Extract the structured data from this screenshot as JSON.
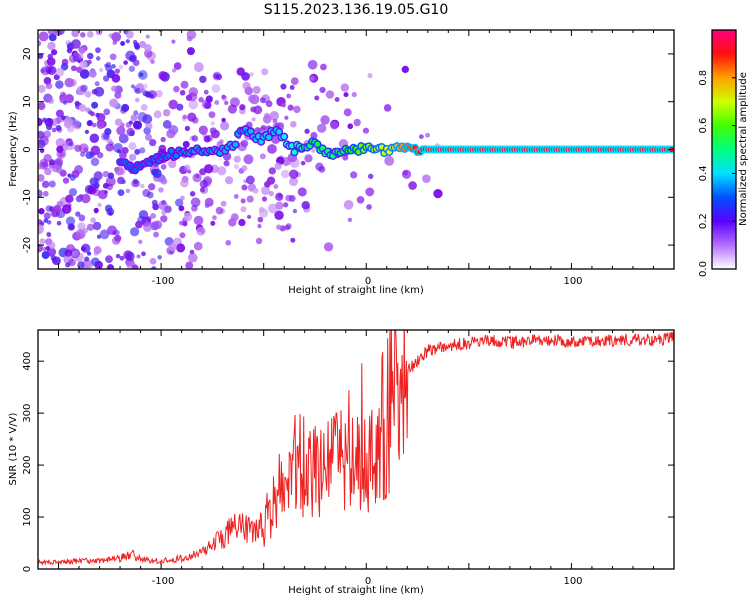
{
  "title": "S115.2023.136.19.05.G10",
  "chart_data": [
    {
      "type": "heatmap",
      "xlabel": "Height of straight line (km)",
      "ylabel": "Frequency (Hz)",
      "xlim": [
        -160,
        150
      ],
      "ylim": [
        -25,
        25
      ],
      "x_ticks": [
        -100,
        0,
        100
      ],
      "y_ticks": [
        -20,
        -10,
        0,
        10,
        20
      ],
      "colorbar": {
        "label": "Normalized spectral amplitude",
        "range": [
          0.0,
          1.0
        ],
        "ticks": [
          0.0,
          0.2,
          0.4,
          0.6,
          0.8
        ],
        "tick_labels": [
          "0.0",
          "0.2",
          "0.4",
          "0.6",
          "0.8"
        ],
        "colormap": [
          "#ffffff",
          "#7b00e6",
          "#0050ff",
          "#00ffff",
          "#00ff00",
          "#ffff00",
          "#ff0000",
          "#ff0080"
        ]
      },
      "ridge": [
        {
          "x": -120,
          "y": -2,
          "amp": 0.3
        },
        {
          "x": -115,
          "y": -4,
          "amp": 0.3
        },
        {
          "x": -95,
          "y": -1,
          "amp": 0.32
        },
        {
          "x": -85,
          "y": 0,
          "amp": 0.35
        },
        {
          "x": -75,
          "y": -1,
          "amp": 0.35
        },
        {
          "x": -65,
          "y": 1,
          "amp": 0.38
        },
        {
          "x": -60,
          "y": 4,
          "amp": 0.35
        },
        {
          "x": -55,
          "y": 3,
          "amp": 0.38
        },
        {
          "x": -50,
          "y": 2,
          "amp": 0.4
        },
        {
          "x": -45,
          "y": 4,
          "amp": 0.38
        },
        {
          "x": -40,
          "y": 2,
          "amp": 0.42
        },
        {
          "x": -35,
          "y": 0,
          "amp": 0.45
        },
        {
          "x": -30,
          "y": 1,
          "amp": 0.5
        },
        {
          "x": -25,
          "y": 1,
          "amp": 0.55
        },
        {
          "x": -20,
          "y": -1,
          "amp": 0.5
        },
        {
          "x": -15,
          "y": -1,
          "amp": 0.5
        },
        {
          "x": -10,
          "y": 0,
          "amp": 0.55
        },
        {
          "x": 0,
          "y": 0,
          "amp": 0.65
        },
        {
          "x": 10,
          "y": 0,
          "amp": 0.7
        },
        {
          "x": 20,
          "y": 0,
          "amp": 0.8
        },
        {
          "x": 30,
          "y": 0,
          "amp": 0.9
        },
        {
          "x": 150,
          "y": 0,
          "amp": 0.9
        }
      ]
    },
    {
      "type": "line",
      "xlabel": "Height of straight line (km)",
      "ylabel": "SNR (10 * V/V)",
      "xlim": [
        -160,
        150
      ],
      "ylim": [
        0,
        460
      ],
      "x_ticks": [
        -100,
        0,
        100
      ],
      "y_ticks": [
        0,
        100,
        200,
        300,
        400
      ],
      "series": [
        {
          "color": "#ee2222",
          "x": [
            -160,
            -150,
            -140,
            -130,
            -120,
            -115,
            -110,
            -100,
            -90,
            -80,
            -75,
            -70,
            -65,
            -60,
            -55,
            -50,
            -45,
            -42,
            -40,
            -38,
            -35,
            -30,
            -25,
            -20,
            -15,
            -10,
            -8,
            -6,
            -4,
            -2,
            0,
            2,
            5,
            10,
            15,
            20,
            25,
            30,
            40,
            50,
            60,
            70,
            80,
            90,
            100,
            110,
            120,
            130,
            140,
            150
          ],
          "y": [
            12,
            14,
            15,
            16,
            20,
            30,
            18,
            15,
            20,
            30,
            50,
            60,
            80,
            80,
            70,
            90,
            130,
            150,
            120,
            140,
            200,
            210,
            180,
            170,
            220,
            190,
            280,
            150,
            200,
            260,
            170,
            200,
            230,
            300,
            340,
            380,
            400,
            420,
            430,
            435,
            440,
            435,
            440,
            440,
            438,
            440,
            440,
            442,
            440,
            445
          ]
        }
      ]
    }
  ]
}
